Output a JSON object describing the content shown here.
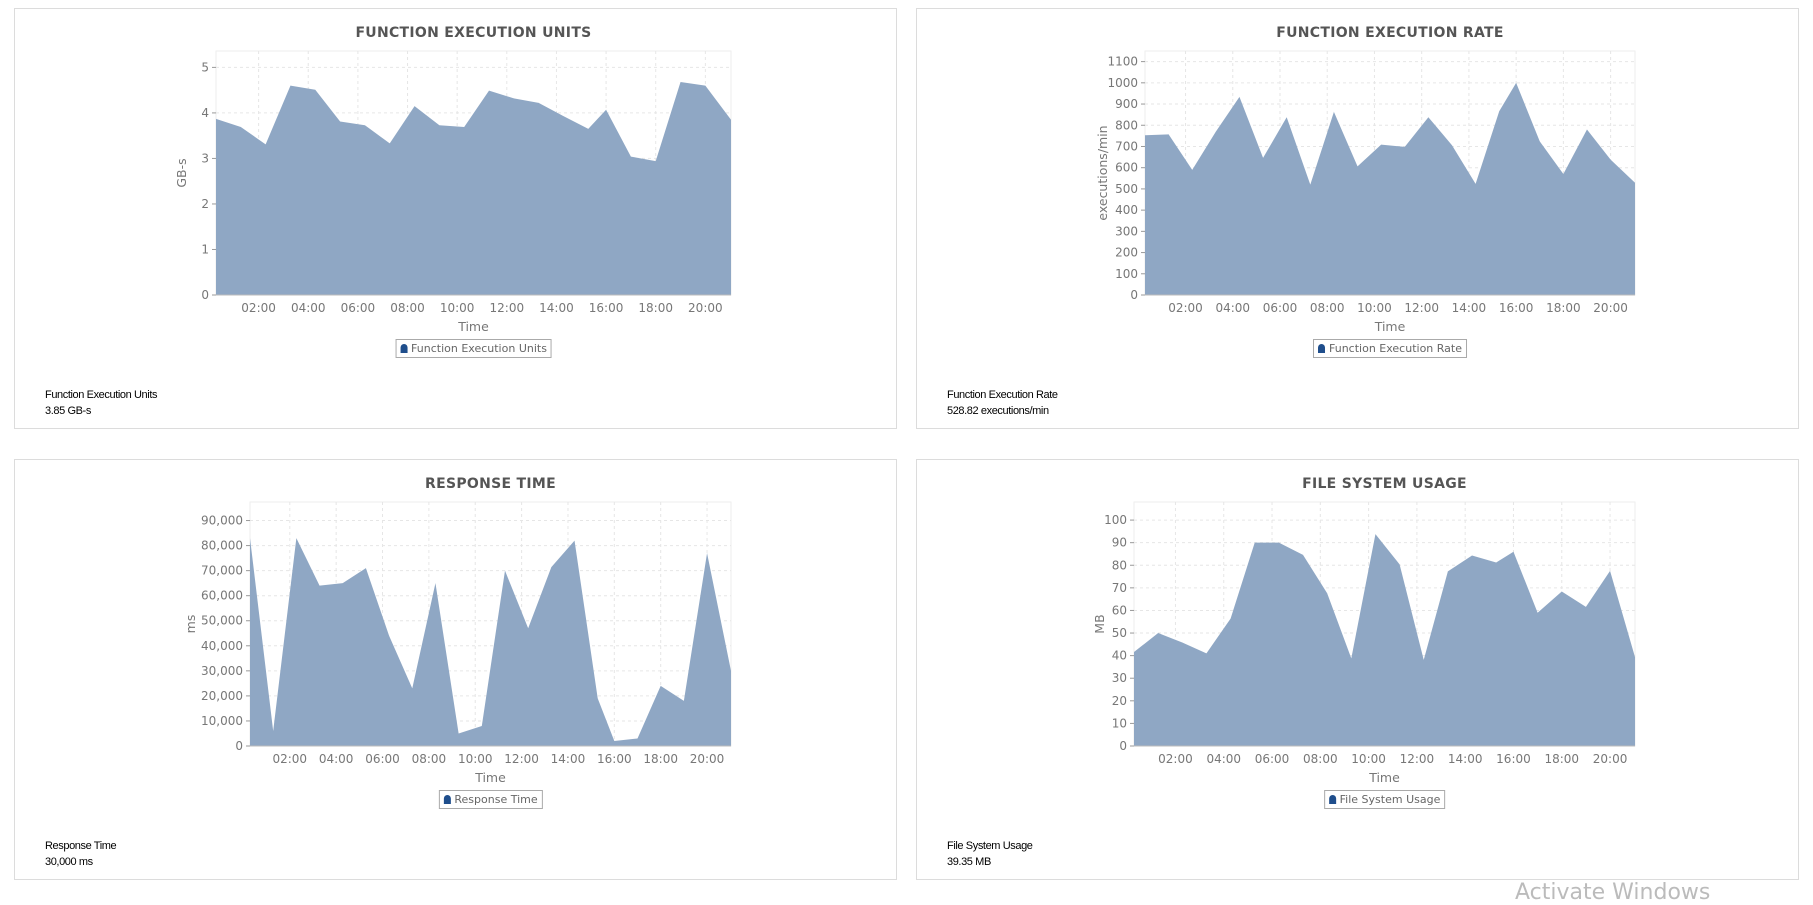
{
  "chart_data": [
    {
      "type": "area",
      "title": "FUNCTION EXECUTION UNITS",
      "xlabel": "Time",
      "ylabel": "GB-s",
      "legend": "Function Execution Units",
      "legend_position": "bottom",
      "grid": true,
      "ylim": [
        0,
        5.36
      ],
      "yticks": [
        0,
        1,
        2,
        3,
        4,
        5
      ],
      "ytick_labels": [
        "0",
        "1",
        "2",
        "3",
        "4",
        "5"
      ],
      "x": [
        "00:17",
        "01:17",
        "02:17",
        "03:17",
        "04:17",
        "05:17",
        "06:17",
        "07:17",
        "08:17",
        "09:17",
        "10:17",
        "11:17",
        "12:17",
        "13:17",
        "14:17",
        "15:17",
        "16:00",
        "17:00",
        "18:00",
        "19:00",
        "20:00",
        "21:02"
      ],
      "values": [
        3.87,
        3.69,
        3.31,
        4.6,
        4.51,
        3.81,
        3.73,
        3.33,
        4.15,
        3.73,
        3.69,
        4.49,
        4.32,
        4.22,
        3.93,
        3.65,
        4.07,
        3.04,
        2.94,
        4.68,
        4.6,
        3.85
      ],
      "summary_label": "Function Execution Units",
      "summary_value": "3.85 GB-s"
    },
    {
      "type": "area",
      "title": "FUNCTION EXECUTION RATE",
      "xlabel": "Time",
      "ylabel": "executions/min",
      "legend": "Function Execution Rate",
      "legend_position": "bottom",
      "grid": true,
      "ylim": [
        0,
        1150
      ],
      "yticks": [
        0,
        100,
        200,
        300,
        400,
        500,
        600,
        700,
        800,
        900,
        1000,
        1100
      ],
      "ytick_labels": [
        "0",
        "100",
        "200",
        "300",
        "400",
        "500",
        "600",
        "700",
        "800",
        "900",
        "1000",
        "1100"
      ],
      "x": [
        "00:17",
        "01:17",
        "02:17",
        "03:17",
        "04:17",
        "05:17",
        "06:17",
        "07:17",
        "08:17",
        "09:17",
        "10:17",
        "11:17",
        "12:17",
        "13:17",
        "14:17",
        "15:17",
        "16:00",
        "17:00",
        "18:00",
        "19:00",
        "20:00",
        "21:02"
      ],
      "values": [
        753,
        757,
        590,
        770,
        934,
        646,
        838,
        520,
        863,
        606,
        709,
        698,
        838,
        706,
        524,
        866,
        1000,
        724,
        570,
        780,
        638,
        529
      ],
      "summary_label": "Function Execution Rate",
      "summary_value": "528.82 executions/min"
    },
    {
      "type": "area",
      "title": "RESPONSE TIME",
      "xlabel": "Time",
      "ylabel": "ms",
      "legend": "Response Time",
      "legend_position": "bottom",
      "grid": true,
      "ylim": [
        0,
        97400
      ],
      "yticks": [
        0,
        10000,
        20000,
        30000,
        40000,
        50000,
        60000,
        70000,
        80000,
        90000
      ],
      "ytick_labels": [
        "0",
        "10,000",
        "20,000",
        "30,000",
        "40,000",
        "50,000",
        "60,000",
        "70,000",
        "80,000",
        "90,000"
      ],
      "x": [
        "00:17",
        "01:17",
        "02:17",
        "03:17",
        "04:17",
        "05:17",
        "06:17",
        "07:17",
        "08:17",
        "09:17",
        "10:17",
        "11:17",
        "12:17",
        "13:17",
        "14:17",
        "15:17",
        "16:00",
        "17:00",
        "18:00",
        "19:00",
        "20:00",
        "21:02"
      ],
      "values": [
        83000,
        6000,
        83000,
        64000,
        65000,
        71000,
        44000,
        23000,
        65000,
        5000,
        8000,
        70000,
        47000,
        71400,
        82000,
        19000,
        2000,
        3000,
        24000,
        18000,
        77000,
        30000
      ],
      "summary_label": "Response Time",
      "summary_value": "30,000 ms"
    },
    {
      "type": "area",
      "title": "FILE SYSTEM USAGE",
      "xlabel": "Time",
      "ylabel": "MB",
      "legend": "File System Usage",
      "legend_position": "bottom",
      "grid": true,
      "ylim": [
        0,
        108
      ],
      "yticks": [
        0,
        10,
        20,
        30,
        40,
        50,
        60,
        70,
        80,
        90,
        100
      ],
      "ytick_labels": [
        "0",
        "10",
        "20",
        "30",
        "40",
        "50",
        "60",
        "70",
        "80",
        "90",
        "100"
      ],
      "x": [
        "00:17",
        "01:17",
        "02:17",
        "03:17",
        "04:17",
        "05:17",
        "06:17",
        "07:17",
        "08:17",
        "09:17",
        "10:17",
        "11:17",
        "12:17",
        "13:17",
        "14:17",
        "15:17",
        "16:00",
        "17:00",
        "18:00",
        "19:00",
        "20:00",
        "21:02"
      ],
      "values": [
        41.6,
        50,
        45.8,
        41,
        56.4,
        90,
        90,
        84.6,
        67.6,
        38.8,
        93.8,
        80.4,
        38.1,
        77.3,
        84.3,
        81.2,
        86,
        59,
        68.4,
        61.6,
        77.5,
        39.35
      ],
      "summary_label": "File System Usage",
      "summary_value": "39.35 MB"
    }
  ],
  "xtick_labels": [
    "02:00",
    "04:00",
    "06:00",
    "08:00",
    "10:00",
    "12:00",
    "14:00",
    "16:00",
    "18:00",
    "20:00"
  ],
  "colors": {
    "area": "#8fa7c4",
    "legend_swatch": "#1f4e8c",
    "grid": "#e6e6e6"
  },
  "watermark": "Activate Windows"
}
